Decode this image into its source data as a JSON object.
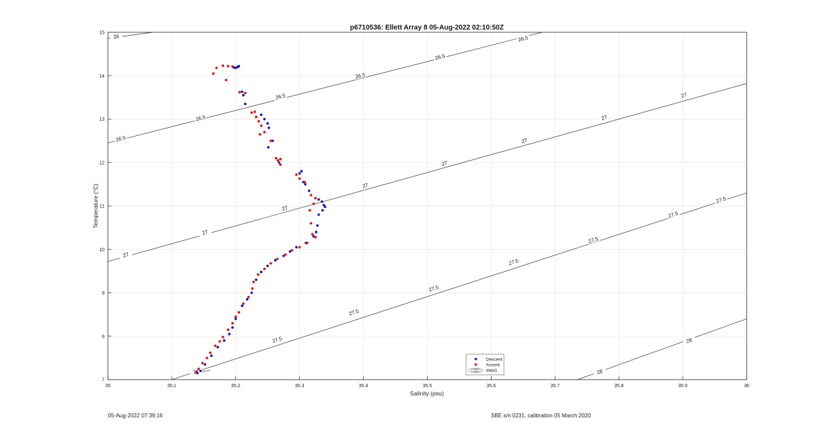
{
  "chart_data": {
    "type": "scatter",
    "title": "p6710536: Ellett Array 8 05-Aug-2022 02:10:50Z",
    "xlabel": "Salinity (psu)",
    "ylabel": "Temperature (°C)",
    "xlim": [
      35,
      36
    ],
    "ylim": [
      7,
      15
    ],
    "x_ticks": [
      "35",
      "35.1",
      "35.2",
      "35.3",
      "35.4",
      "35.5",
      "35.6",
      "35.7",
      "35.8",
      "35.9",
      "36"
    ],
    "y_ticks": [
      "7",
      "8",
      "9",
      "10",
      "11",
      "12",
      "13",
      "14",
      "15"
    ],
    "grid": true,
    "legend_position": "bottom-center",
    "legend": [
      "Descent",
      "Ascent",
      "data1"
    ],
    "colors": {
      "descent": "#1010c8",
      "ascent": "#e01010",
      "contour": "#333333",
      "grid": "#e6e6e6"
    },
    "contours": [
      {
        "label": "26",
        "line": [
          [
            35.0,
            14.86
          ],
          [
            35.07,
            15.0
          ]
        ],
        "label_pos": [
          [
            35.013,
            14.9
          ]
        ]
      },
      {
        "label": "26.5",
        "line": [
          [
            35.0,
            12.45
          ],
          [
            35.68,
            15.0
          ]
        ],
        "label_pos": [
          [
            35.02,
            12.55
          ],
          [
            35.145,
            13.02
          ],
          [
            35.27,
            13.52
          ],
          [
            35.395,
            14.0
          ],
          [
            35.52,
            14.43
          ],
          [
            35.65,
            14.85
          ]
        ]
      },
      {
        "label": "27",
        "line": [
          [
            35.0,
            9.72
          ],
          [
            36.0,
            13.82
          ]
        ],
        "label_pos": [
          [
            35.028,
            9.87
          ],
          [
            35.152,
            10.39
          ],
          [
            35.277,
            10.95
          ],
          [
            35.403,
            11.47
          ],
          [
            35.527,
            11.98
          ],
          [
            35.652,
            12.5
          ],
          [
            35.777,
            13.03
          ],
          [
            35.902,
            13.55
          ]
        ]
      },
      {
        "label": "27.5",
        "line": [
          [
            35.1,
            7.0
          ],
          [
            36.0,
            11.3
          ]
        ],
        "label_pos": [
          [
            35.265,
            7.92
          ],
          [
            35.385,
            8.55
          ],
          [
            35.51,
            9.1
          ],
          [
            35.635,
            9.71
          ],
          [
            35.76,
            10.22
          ],
          [
            35.885,
            10.8
          ],
          [
            35.96,
            11.14
          ]
        ]
      },
      {
        "label": "28",
        "line": [
          [
            35.735,
            7.0
          ],
          [
            36.0,
            8.4
          ]
        ],
        "label_pos": [
          [
            35.77,
            7.18
          ],
          [
            35.91,
            7.9
          ]
        ]
      },
      {
        "label": "27",
        "line": [
          [
            35.135,
            7.15
          ],
          [
            35.16,
            7.22
          ]
        ],
        "label_pos": [
          [
            35.138,
            7.18
          ]
        ]
      }
    ],
    "series": [
      {
        "name": "Descent",
        "points": [
          [
            35.197,
            14.19
          ],
          [
            35.2,
            14.18
          ],
          [
            35.203,
            14.2
          ],
          [
            35.205,
            14.22
          ],
          [
            35.21,
            13.63
          ],
          [
            35.212,
            13.55
          ],
          [
            35.215,
            13.35
          ],
          [
            35.24,
            13.1
          ],
          [
            35.245,
            13.0
          ],
          [
            35.25,
            12.9
          ],
          [
            35.252,
            12.8
          ],
          [
            35.258,
            12.5
          ],
          [
            35.251,
            12.35
          ],
          [
            35.268,
            12.0
          ],
          [
            35.3,
            11.75
          ],
          [
            35.303,
            11.8
          ],
          [
            35.306,
            11.55
          ],
          [
            35.309,
            11.5
          ],
          [
            35.315,
            11.35
          ],
          [
            35.33,
            11.15
          ],
          [
            35.335,
            11.1
          ],
          [
            35.338,
            11.02
          ],
          [
            35.34,
            10.98
          ],
          [
            35.336,
            10.9
          ],
          [
            35.33,
            10.8
          ],
          [
            35.328,
            10.55
          ],
          [
            35.326,
            10.4
          ],
          [
            35.322,
            10.3
          ],
          [
            35.31,
            10.15
          ],
          [
            35.295,
            10.05
          ],
          [
            35.285,
            9.95
          ],
          [
            35.275,
            9.85
          ],
          [
            35.262,
            9.75
          ],
          [
            35.25,
            9.62
          ],
          [
            35.24,
            9.48
          ],
          [
            35.232,
            9.3
          ],
          [
            35.225,
            9.0
          ],
          [
            35.218,
            8.85
          ],
          [
            35.21,
            8.7
          ],
          [
            35.2,
            8.4
          ],
          [
            35.195,
            8.2
          ],
          [
            35.19,
            8.05
          ],
          [
            35.182,
            7.9
          ],
          [
            35.172,
            7.75
          ],
          [
            35.162,
            7.55
          ],
          [
            35.152,
            7.35
          ],
          [
            35.145,
            7.2
          ],
          [
            35.14,
            7.15
          ]
        ]
      },
      {
        "name": "Ascent",
        "points": [
          [
            35.165,
            14.05
          ],
          [
            35.17,
            14.18
          ],
          [
            35.18,
            14.23
          ],
          [
            35.188,
            14.22
          ],
          [
            35.195,
            14.21
          ],
          [
            35.185,
            13.9
          ],
          [
            35.206,
            13.62
          ],
          [
            35.215,
            13.6
          ],
          [
            35.225,
            13.15
          ],
          [
            35.23,
            13.17
          ],
          [
            35.232,
            13.05
          ],
          [
            35.236,
            12.95
          ],
          [
            35.24,
            12.85
          ],
          [
            35.238,
            12.65
          ],
          [
            35.245,
            12.7
          ],
          [
            35.255,
            12.5
          ],
          [
            35.263,
            12.1
          ],
          [
            35.266,
            12.05
          ],
          [
            35.27,
            11.95
          ],
          [
            35.27,
            12.08
          ],
          [
            35.295,
            11.72
          ],
          [
            35.3,
            11.63
          ],
          [
            35.308,
            11.55
          ],
          [
            35.318,
            11.25
          ],
          [
            35.325,
            11.18
          ],
          [
            35.322,
            11.05
          ],
          [
            35.316,
            10.9
          ],
          [
            35.318,
            10.6
          ],
          [
            35.32,
            10.35
          ],
          [
            35.325,
            10.28
          ],
          [
            35.312,
            10.15
          ],
          [
            35.3,
            10.05
          ],
          [
            35.288,
            9.98
          ],
          [
            35.278,
            9.88
          ],
          [
            35.265,
            9.78
          ],
          [
            35.255,
            9.68
          ],
          [
            35.245,
            9.55
          ],
          [
            35.235,
            9.42
          ],
          [
            35.228,
            9.25
          ],
          [
            35.226,
            9.1
          ],
          [
            35.22,
            8.9
          ],
          [
            35.212,
            8.75
          ],
          [
            35.205,
            8.55
          ],
          [
            35.2,
            8.45
          ],
          [
            35.195,
            8.3
          ],
          [
            35.188,
            8.15
          ],
          [
            35.18,
            7.98
          ],
          [
            35.175,
            7.88
          ],
          [
            35.168,
            7.78
          ],
          [
            35.16,
            7.62
          ],
          [
            35.155,
            7.5
          ],
          [
            35.148,
            7.38
          ],
          [
            35.142,
            7.25
          ],
          [
            35.138,
            7.18
          ]
        ]
      }
    ]
  },
  "footer": {
    "left": "05-Aug-2022 07:39:16",
    "right": "SBE s/n 0231, calibration 05 March 2020"
  }
}
